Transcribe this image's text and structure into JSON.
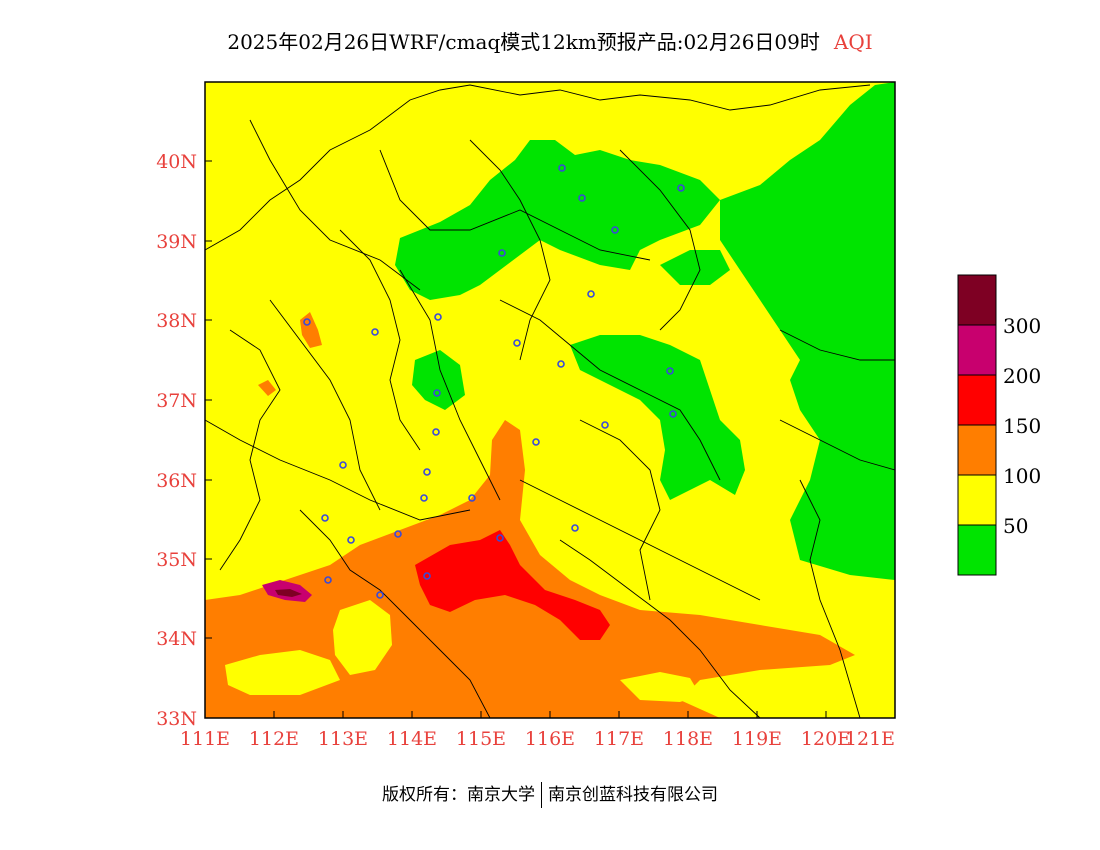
{
  "title": {
    "main": "2025年02月26日WRF/cmaq模式12km预报产品:02月26日09时",
    "product": "AQI"
  },
  "colors": {
    "good": "#00e400",
    "moderate": "#ffff00",
    "unhealthy_sensitive": "#ff7e00",
    "unhealthy": "#ff0000",
    "very_unhealthy": "#c8006e",
    "hazardous": "#7e0023",
    "boundary": "#000000",
    "city_marker": "#3a4ad8",
    "axis_label": "#e8413c"
  },
  "axes": {
    "lat_labels": [
      "40N",
      "39N",
      "38N",
      "37N",
      "36N",
      "35N",
      "34N",
      "33N"
    ],
    "lon_labels": [
      "111E",
      "112E",
      "113E",
      "114E",
      "115E",
      "116E",
      "117E",
      "118E",
      "119E",
      "120E",
      "121E"
    ]
  },
  "legend": {
    "labels": [
      "300",
      "200",
      "150",
      "100",
      "50"
    ]
  },
  "copyright": {
    "left": "版权所有：南京大学",
    "right": "南京创蓝科技有限公司"
  }
}
